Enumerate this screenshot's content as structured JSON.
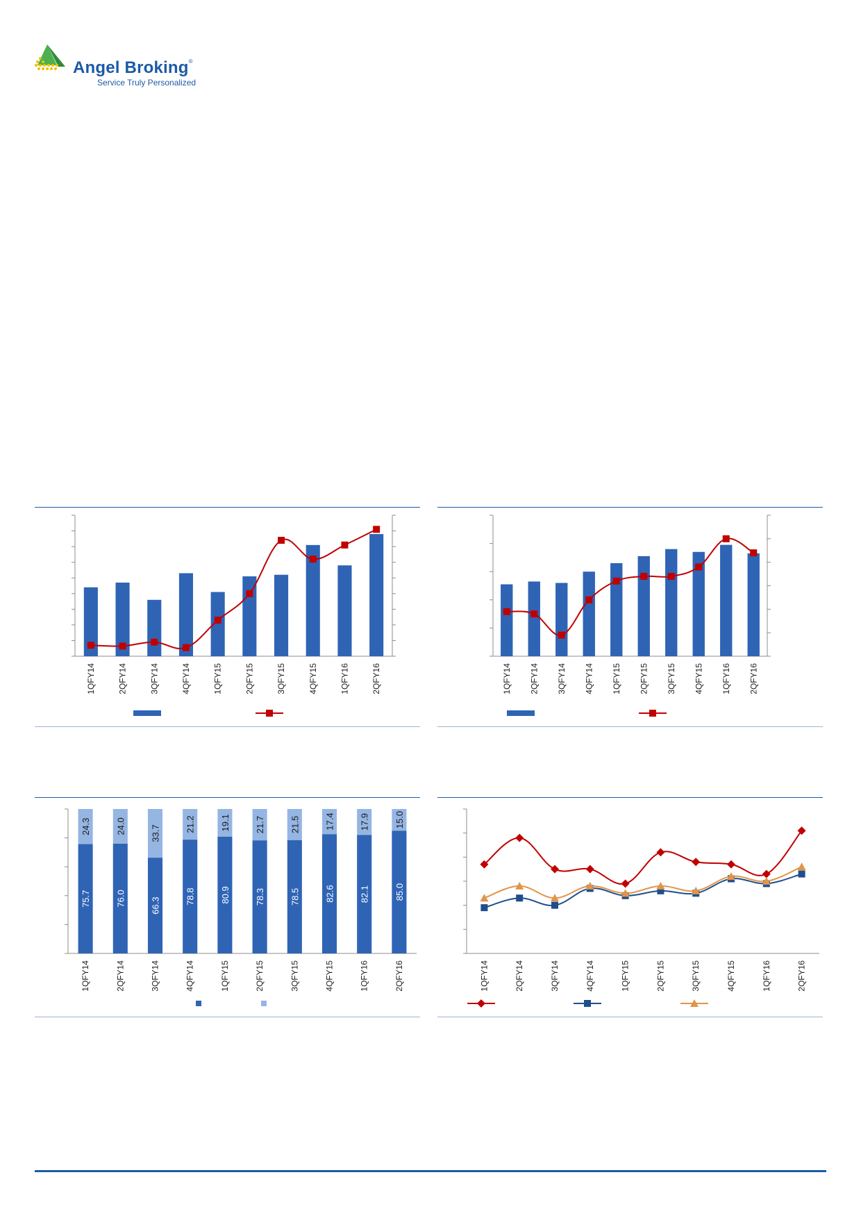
{
  "header": {
    "brand_name": "Angel Broking",
    "brand_reg": "®",
    "tagline": "Service Truly Personalized"
  },
  "colors": {
    "brand_blue": "#1b5aa6",
    "bar_dark": "#2f64b5",
    "bar_light": "#95b5e3",
    "line_red": "#c00000",
    "line_navy": "#1f4e8c",
    "line_orange": "#e0954a",
    "logo_green": "#4caf50",
    "logo_yellow": "#f2c200"
  },
  "chart_data": [
    {
      "id": "chart1",
      "type": "bar+line",
      "categories": [
        "1QFY14",
        "2QFY14",
        "3QFY14",
        "4QFY14",
        "1QFY15",
        "2QFY15",
        "3QFY15",
        "4QFY15",
        "1QFY16",
        "2QFY16"
      ],
      "bar_values": [
        44,
        47,
        36,
        53,
        41,
        51,
        52,
        71,
        58,
        78
      ],
      "line_values": [
        7,
        6.5,
        9,
        5.5,
        23,
        40,
        74,
        62,
        71,
        81
      ],
      "bar_ylim": [
        0,
        90
      ],
      "line_ylim": [
        0,
        90
      ],
      "series": [
        {
          "name": "",
          "kind": "bar"
        },
        {
          "name": "",
          "kind": "line",
          "marker": "square"
        }
      ]
    },
    {
      "id": "chart2",
      "type": "bar+line",
      "categories": [
        "1QFY14",
        "2QFY14",
        "3QFY14",
        "4QFY14",
        "1QFY15",
        "2QFY15",
        "3QFY15",
        "4QFY15",
        "1QFY16",
        "2QFY16"
      ],
      "bar_values": [
        51,
        53,
        52,
        60,
        66,
        71,
        76,
        74,
        79,
        73
      ],
      "line_values": [
        19,
        18,
        9,
        24,
        32,
        34,
        34,
        38,
        50,
        44
      ],
      "bar_ylim": [
        0,
        100
      ],
      "line_ylim": [
        0,
        60
      ],
      "series": [
        {
          "name": "",
          "kind": "bar"
        },
        {
          "name": "",
          "kind": "line",
          "marker": "square"
        }
      ]
    },
    {
      "id": "chart3",
      "type": "stacked-bar",
      "categories": [
        "1QFY14",
        "2QFY14",
        "3QFY14",
        "4QFY14",
        "1QFY15",
        "2QFY15",
        "3QFY15",
        "4QFY15",
        "1QFY16",
        "2QFY16"
      ],
      "series": [
        {
          "name": "",
          "values": [
            75.7,
            76.0,
            66.3,
            78.8,
            80.9,
            78.3,
            78.5,
            82.6,
            82.1,
            85.0
          ]
        },
        {
          "name": "",
          "values": [
            24.3,
            24.0,
            33.7,
            21.2,
            19.1,
            21.7,
            21.5,
            17.4,
            17.9,
            15.0
          ]
        }
      ],
      "labels_bottom": [
        "75.7",
        "76.0",
        "66.3",
        "78.8",
        "80.9",
        "78.3",
        "78.5",
        "82.6",
        "82.1",
        "85.0"
      ],
      "labels_top": [
        "24.3",
        "24.0",
        "33.7",
        "21.2",
        "19.1",
        "21.7",
        "21.5",
        "17.4",
        "17.9",
        "15.0"
      ],
      "ylim": [
        0,
        100
      ]
    },
    {
      "id": "chart4",
      "type": "line",
      "categories": [
        "1QFY14",
        "2QFY14",
        "3QFY14",
        "4QFY14",
        "1QFY15",
        "2QFY15",
        "3QFY15",
        "4QFY15",
        "1QFY16",
        "2QFY16"
      ],
      "series": [
        {
          "name": "",
          "marker": "diamond",
          "values": [
            37,
            48,
            35,
            35,
            29,
            42,
            38,
            37,
            33,
            51
          ]
        },
        {
          "name": "",
          "marker": "square",
          "values": [
            19,
            23,
            20,
            27,
            24,
            26,
            25,
            31,
            29,
            33
          ]
        },
        {
          "name": "",
          "marker": "triangle",
          "values": [
            23,
            28,
            23,
            28,
            25,
            28,
            26,
            32,
            30,
            36
          ]
        }
      ],
      "ylim": [
        0,
        60
      ]
    }
  ]
}
